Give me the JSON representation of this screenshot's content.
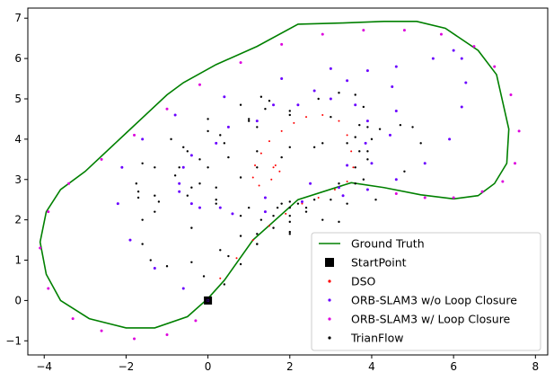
{
  "chart_data": {
    "type": "scatter",
    "xlim": [
      -4.4,
      8.3
    ],
    "ylim": [
      -1.35,
      7.25
    ],
    "x_ticks": [
      -4,
      -2,
      0,
      2,
      4,
      6,
      8
    ],
    "y_ticks": [
      -1,
      0,
      1,
      2,
      3,
      4,
      5,
      6,
      7
    ],
    "x_tick_labels": [
      "−4",
      "−2",
      "0",
      "2",
      "4",
      "6",
      "8"
    ],
    "y_tick_labels": [
      "−1",
      "0",
      "1",
      "2",
      "3",
      "4",
      "5",
      "6",
      "7"
    ],
    "grid": false,
    "legend_position": "lower-right",
    "series": [
      {
        "name": "Ground Truth",
        "kind": "line",
        "color": "#008000",
        "x": [
          0.0,
          -0.5,
          -1.3,
          -2.0,
          -2.9,
          -3.6,
          -3.95,
          -4.1,
          -3.95,
          -3.6,
          -3.0,
          -2.0,
          -1.0,
          -0.6,
          0.2,
          1.2,
          2.2,
          3.3,
          4.3,
          5.1,
          5.8,
          6.6,
          7.05,
          7.35,
          7.3,
          7.0,
          6.6,
          6.0,
          5.2,
          4.3,
          3.5,
          2.2,
          1.1,
          0.4,
          0.0
        ],
        "y": [
          0.05,
          -0.4,
          -0.68,
          -0.68,
          -0.45,
          0.0,
          0.65,
          1.45,
          2.2,
          2.75,
          3.2,
          4.15,
          5.1,
          5.4,
          5.85,
          6.3,
          6.85,
          6.88,
          6.92,
          6.92,
          6.75,
          6.2,
          5.6,
          4.25,
          3.4,
          2.9,
          2.6,
          2.52,
          2.62,
          2.8,
          2.92,
          2.5,
          1.5,
          0.5,
          0.05
        ]
      },
      {
        "name": "StartPoint",
        "kind": "marker",
        "color": "#000000",
        "x": [
          0.0
        ],
        "y": [
          0.0
        ]
      },
      {
        "name": "DSO",
        "kind": "points",
        "color": "#ff0000",
        "x": [
          0.0,
          0.3,
          0.7,
          1.1,
          1.5,
          1.9,
          2.3,
          2.7,
          3.1,
          3.4,
          3.55,
          3.5,
          3.4,
          3.2,
          2.8,
          2.4,
          2.1,
          1.8,
          1.5,
          1.3,
          1.15,
          1.1,
          1.25,
          1.55,
          1.75,
          1.65,
          1.6
        ],
        "y": [
          0.0,
          0.55,
          1.05,
          1.5,
          1.85,
          2.15,
          2.4,
          2.55,
          2.75,
          2.95,
          3.3,
          3.7,
          4.1,
          4.45,
          4.6,
          4.55,
          4.4,
          4.2,
          3.95,
          3.65,
          3.35,
          3.05,
          2.85,
          3.0,
          3.2,
          3.35,
          3.3
        ]
      },
      {
        "name": "ORB-SLAM3 w/o Loop Closure",
        "kind": "points",
        "color": "#6a00ff",
        "x": [
          0.0,
          -0.6,
          -1.3,
          -1.9,
          -2.2,
          -2.1,
          -1.6,
          -0.8,
          0.4,
          1.8,
          3.0,
          3.9,
          4.5,
          4.6,
          4.45,
          4.0,
          3.2,
          2.3,
          1.4,
          0.6,
          -0.2,
          -0.7,
          -0.6,
          0.2,
          1.2,
          2.2,
          3.0,
          3.6,
          3.9,
          3.85,
          3.4,
          2.5,
          1.4,
          0.3,
          -0.4,
          -0.7,
          -0.4,
          0.5,
          1.6,
          2.6,
          3.4,
          4.6,
          5.5,
          6.0,
          6.2,
          6.3,
          6.2,
          5.9,
          5.3,
          4.6,
          3.9,
          3.3
        ],
        "y": [
          0.0,
          0.3,
          0.8,
          1.5,
          2.4,
          3.3,
          4.0,
          4.6,
          5.05,
          5.5,
          5.75,
          5.7,
          5.3,
          4.7,
          4.1,
          3.4,
          2.8,
          2.45,
          2.2,
          2.15,
          2.3,
          2.7,
          3.3,
          3.9,
          4.45,
          4.85,
          5.0,
          4.85,
          4.45,
          3.9,
          3.35,
          2.9,
          2.55,
          2.3,
          2.4,
          2.9,
          3.6,
          4.3,
          4.85,
          5.2,
          5.45,
          5.8,
          6.0,
          6.2,
          6.0,
          5.4,
          4.8,
          4.0,
          3.4,
          3.0,
          2.75,
          2.6
        ]
      },
      {
        "name": "ORB-SLAM3 w/ Loop Closure",
        "kind": "points",
        "color": "#dd00dd",
        "x": [
          -0.3,
          -1.0,
          -1.8,
          -2.6,
          -3.3,
          -3.9,
          -4.1,
          -3.9,
          -3.4,
          -2.6,
          -1.8,
          -1.0,
          -0.2,
          0.8,
          1.8,
          2.8,
          3.8,
          4.8,
          5.7,
          6.5,
          7.0,
          7.4,
          7.6,
          7.5,
          7.2,
          6.7,
          6.0,
          5.3,
          4.6
        ],
        "y": [
          -0.5,
          -0.85,
          -0.95,
          -0.75,
          -0.45,
          0.3,
          1.3,
          2.2,
          2.9,
          3.5,
          4.1,
          4.75,
          5.35,
          5.9,
          6.35,
          6.6,
          6.7,
          6.7,
          6.6,
          6.3,
          5.8,
          5.1,
          4.2,
          3.4,
          2.95,
          2.7,
          2.55,
          2.55,
          2.65
        ]
      },
      {
        "name": "TrianFlow",
        "kind": "points",
        "color": "#000000",
        "x": [
          0.0,
          0.4,
          0.8,
          1.2,
          1.6,
          2.0,
          2.6,
          3.2,
          3.6,
          3.7,
          3.4,
          2.6,
          1.8,
          1.2,
          0.8,
          0.2,
          -0.5,
          -1.2,
          -1.7,
          -1.75,
          -1.3,
          -0.5,
          0.3,
          1.0,
          1.4,
          1.5,
          1.3,
          0.8,
          0.0,
          -0.9,
          -1.6,
          -1.7,
          -1.3,
          -0.4,
          0.8,
          2.0,
          3.2,
          4.1,
          4.8,
          5.2,
          5.0,
          4.7,
          4.2,
          3.6,
          2.8,
          2.0,
          1.2,
          0.5,
          0.0,
          -0.2,
          0.2,
          1.0,
          2.0,
          3.0,
          3.6,
          3.9,
          4.0,
          3.7,
          3.0,
          2.0,
          1.0,
          0.0,
          -0.6,
          -0.7,
          -0.4,
          0.2,
          0.8,
          1.3,
          1.6,
          1.7,
          1.8,
          2.0,
          2.2,
          2.4,
          2.4,
          2.0,
          1.2,
          0.3,
          -0.4,
          -1.0,
          -1.4,
          -1.6,
          -1.6,
          -1.3,
          -0.8,
          -0.2,
          0.4,
          1.2,
          2.0,
          2.7,
          3.2,
          3.6,
          3.8,
          3.9,
          3.9,
          3.8,
          3.4,
          2.8,
          2.0,
          1.2,
          0.5,
          -0.1
        ],
        "y": [
          0.0,
          0.4,
          0.9,
          1.4,
          1.8,
          2.1,
          2.5,
          2.9,
          3.3,
          3.7,
          3.9,
          3.8,
          3.55,
          3.3,
          3.05,
          2.8,
          2.6,
          2.45,
          2.55,
          2.9,
          3.3,
          3.7,
          4.1,
          4.45,
          4.75,
          4.95,
          5.05,
          4.85,
          4.5,
          4.0,
          3.4,
          2.7,
          2.2,
          1.8,
          1.6,
          1.65,
          1.95,
          2.5,
          3.2,
          3.9,
          4.3,
          4.35,
          4.25,
          4.05,
          3.9,
          3.8,
          3.7,
          3.55,
          3.3,
          2.9,
          2.5,
          2.3,
          2.3,
          2.5,
          2.9,
          3.5,
          4.0,
          4.35,
          4.55,
          4.6,
          4.5,
          4.2,
          3.8,
          3.3,
          2.8,
          2.4,
          2.1,
          2.0,
          2.1,
          2.3,
          2.4,
          2.45,
          2.4,
          2.3,
          2.2,
          1.95,
          1.65,
          1.25,
          0.95,
          0.85,
          1.0,
          1.4,
          2.0,
          2.6,
          3.1,
          3.5,
          3.9,
          4.3,
          4.7,
          5.0,
          5.15,
          5.1,
          4.8,
          4.3,
          3.7,
          3.0,
          2.4,
          2.0,
          1.7,
          1.4,
          1.1,
          0.6
        ]
      }
    ]
  }
}
